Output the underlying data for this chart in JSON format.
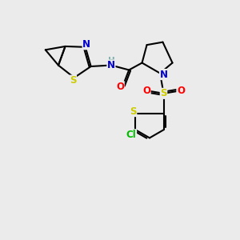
{
  "bg_color": "#ebebeb",
  "bond_color": "#000000",
  "atom_colors": {
    "N": "#0000cc",
    "S": "#cccc00",
    "O": "#ff0000",
    "Cl": "#00bb00",
    "H": "#7fafaf",
    "C": "#000000"
  },
  "figsize": [
    3.0,
    3.0
  ],
  "dpi": 100
}
